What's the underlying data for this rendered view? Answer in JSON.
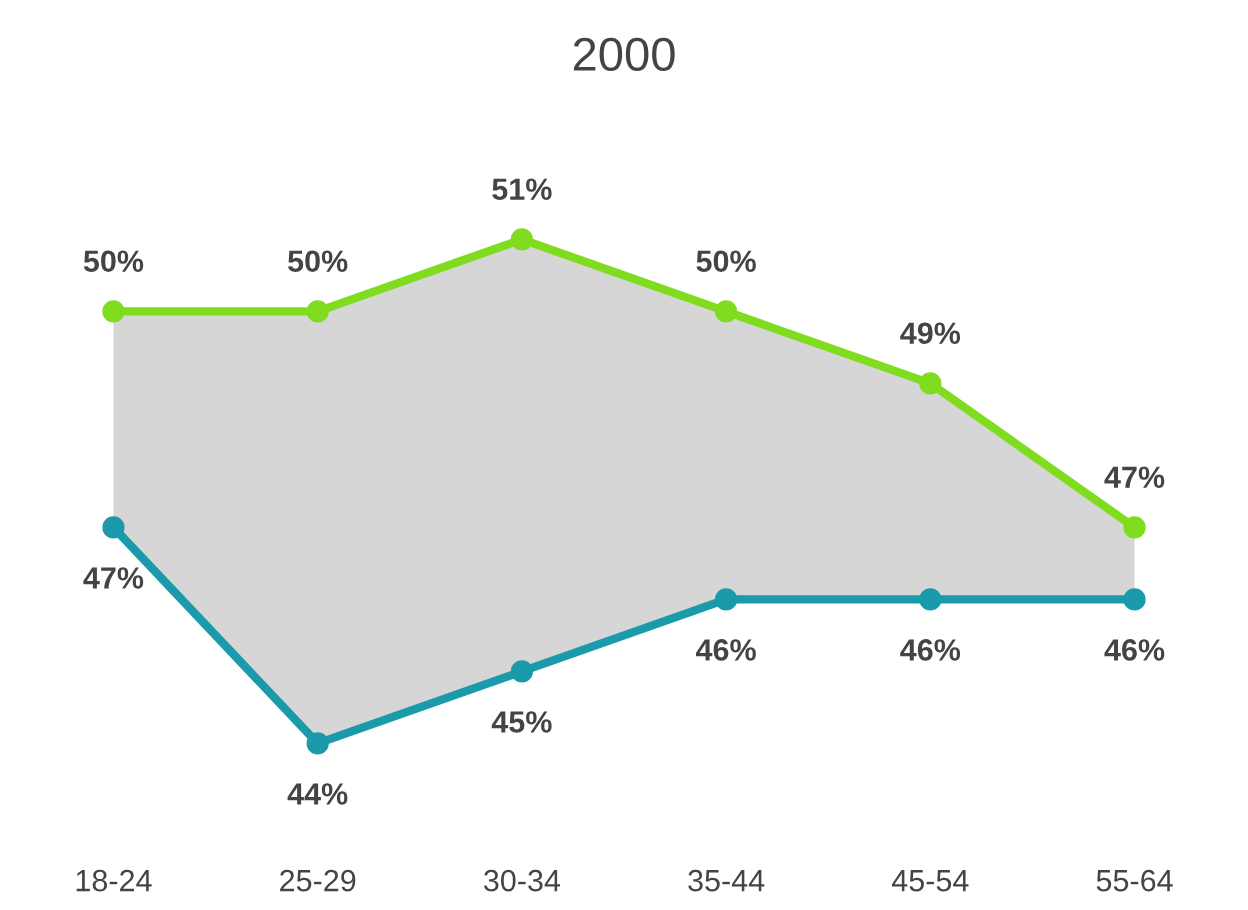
{
  "chart_data": {
    "type": "line",
    "title": "2000",
    "categories": [
      "18-24",
      "25-29",
      "30-34",
      "35-44",
      "45-54",
      "55-64"
    ],
    "series": [
      {
        "color": "#7fdc1e",
        "values": [
          50,
          50,
          51,
          50,
          49,
          47
        ],
        "value_labels": [
          "50%",
          "50%",
          "51%",
          "50%",
          "49%",
          "47%"
        ],
        "lower": [
          47,
          44,
          45,
          46,
          46,
          46
        ],
        "upper": [
          50,
          50,
          51,
          50,
          49,
          47
        ]
      },
      {
        "color": "#1a9aab",
        "values": [
          47,
          44,
          45,
          46,
          46,
          46
        ],
        "value_labels": [
          "47%",
          "44%",
          "45%",
          "46%",
          "46%",
          "46%"
        ]
      }
    ],
    "marker": "circle",
    "line_style": "solid",
    "grid": false
  }
}
